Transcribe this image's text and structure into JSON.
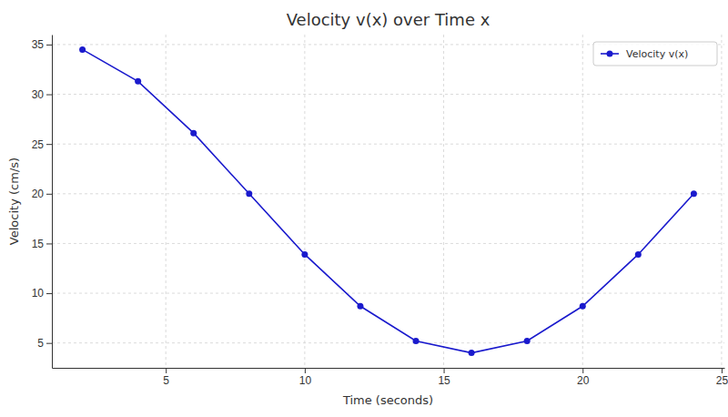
{
  "chart_data": {
    "type": "line",
    "title": "Velocity v(x) over Time x",
    "x_label": "Time (seconds)",
    "y_label": "Velocity (cm/s)",
    "x": [
      2,
      4,
      6,
      8,
      10,
      12,
      14,
      16,
      18,
      20,
      22,
      24
    ],
    "series": [
      {
        "name": "Velocity v(x)",
        "color": "#1a1acd",
        "marker": "o",
        "line_style": "solid",
        "values": [
          34.5,
          31.3,
          26.1,
          20.0,
          13.9,
          8.7,
          5.2,
          4.0,
          5.2,
          8.7,
          13.9,
          20.0
        ]
      }
    ],
    "xlim": [
      0.9,
      25.1
    ],
    "xticks": [
      5,
      10,
      15,
      20,
      25
    ],
    "ylim": [
      2.5,
      36
    ],
    "yticks": [
      5,
      10,
      15,
      20,
      25,
      30,
      35
    ],
    "grid": true,
    "legend": "upper right"
  }
}
